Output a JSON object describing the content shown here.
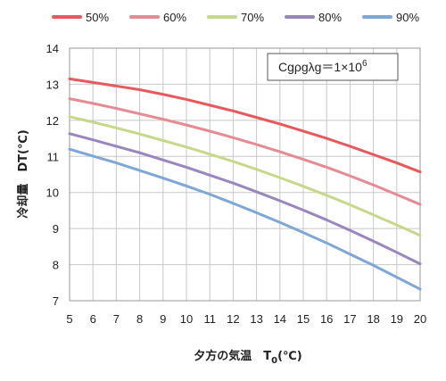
{
  "chart_data": {
    "type": "line",
    "xlabel_main": "夕方の気温　T",
    "xlabel_sub": "0",
    "xlabel_unit": "(℃)",
    "ylabel": "冷却量　DT(℃)",
    "annotation_base": "Cgρgλg＝1×10",
    "annotation_exp": "6",
    "xlim": [
      5,
      20
    ],
    "ylim": [
      7,
      14
    ],
    "x_ticks": [
      "5",
      "6",
      "7",
      "8",
      "9",
      "10",
      "11",
      "12",
      "13",
      "14",
      "15",
      "16",
      "17",
      "18",
      "19",
      "20"
    ],
    "y_ticks": [
      "7",
      "8",
      "9",
      "10",
      "11",
      "12",
      "13",
      "14"
    ],
    "grid": true,
    "legend_position": "top",
    "x": [
      5,
      6,
      7,
      8,
      9,
      10,
      11,
      12,
      13,
      14,
      15,
      16,
      17,
      18,
      19,
      20
    ],
    "series": [
      {
        "name": "50%",
        "color": "#e8585c",
        "values": [
          13.15,
          13.05,
          12.95,
          12.85,
          12.72,
          12.58,
          12.42,
          12.26,
          12.08,
          11.9,
          11.7,
          11.5,
          11.28,
          11.05,
          10.82,
          10.57
        ]
      },
      {
        "name": "60%",
        "color": "#e68a94",
        "values": [
          12.6,
          12.47,
          12.33,
          12.18,
          12.03,
          11.87,
          11.7,
          11.52,
          11.33,
          11.13,
          10.92,
          10.7,
          10.46,
          10.21,
          9.94,
          9.67
        ]
      },
      {
        "name": "70%",
        "color": "#c6d88a",
        "values": [
          12.1,
          11.95,
          11.79,
          11.62,
          11.44,
          11.26,
          11.06,
          10.86,
          10.64,
          10.41,
          10.17,
          9.92,
          9.66,
          9.38,
          9.1,
          8.81
        ]
      },
      {
        "name": "80%",
        "color": "#9a86be",
        "values": [
          11.63,
          11.46,
          11.28,
          11.1,
          10.9,
          10.7,
          10.48,
          10.26,
          10.02,
          9.77,
          9.51,
          9.24,
          8.95,
          8.65,
          8.34,
          8.02
        ]
      },
      {
        "name": "90%",
        "color": "#7ea6d6",
        "values": [
          11.2,
          11.01,
          10.82,
          10.61,
          10.4,
          10.18,
          9.95,
          9.7,
          9.44,
          9.17,
          8.89,
          8.6,
          8.29,
          7.98,
          7.65,
          7.32
        ]
      }
    ]
  }
}
